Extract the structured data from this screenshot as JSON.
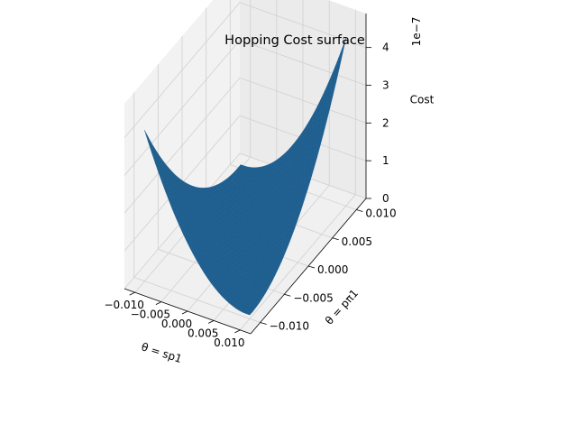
{
  "chart_data": {
    "type": "surface",
    "title": "Hopping Cost surface",
    "xlabel": "θ = sp1",
    "ylabel": "θ = pπ1",
    "zlabel": "Cost",
    "z_offset_text": "1e−7",
    "xlim": [
      -0.012,
      0.012
    ],
    "ylim": [
      -0.012,
      0.012
    ],
    "zlim": [
      0,
      4.9
    ],
    "x_ticks": [
      -0.01,
      -0.005,
      0.0,
      0.005,
      0.01
    ],
    "x_tick_labels": [
      "−0.010",
      "−0.005",
      "0.000",
      "0.005",
      "0.010"
    ],
    "y_ticks": [
      -0.01,
      -0.005,
      0.0,
      0.005,
      0.01
    ],
    "y_tick_labels": [
      "−0.010",
      "−0.005",
      "0.000",
      "0.005",
      "0.010"
    ],
    "z_ticks": [
      0,
      1,
      2,
      3,
      4
    ],
    "z_tick_labels": [
      "0",
      "1",
      "2",
      "3",
      "4"
    ],
    "surface": {
      "x_range": [
        -0.01,
        0.01
      ],
      "y_range": [
        -0.01,
        0.01
      ],
      "grid_n": 30,
      "z_at_corners": {
        "x_min_y_min": 4.0,
        "x_max_y_max": 4.45,
        "x_min_y_max": 0.1,
        "x_max_y_min": 0.1,
        "center": 0.0
      },
      "color": "#1f5f8f"
    },
    "grid": true,
    "pane_color": "#f2f2f2"
  }
}
